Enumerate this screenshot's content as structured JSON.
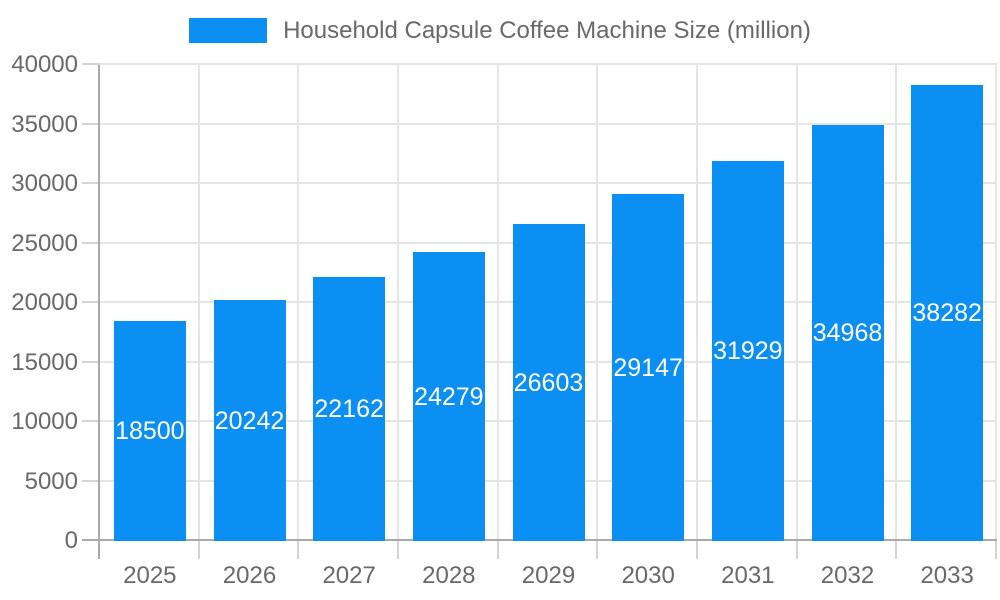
{
  "legend": {
    "label": "Household Capsule Coffee Machine Size (million)"
  },
  "colors": {
    "bar": "#0c8ff2",
    "grid_line": "#e5e5e5",
    "axis_line": "#a9a9a9",
    "tick_mark": "#d4d4d4",
    "tick_text": "#696969",
    "legend_text": "#696969",
    "bar_label_text": "#ffffff",
    "background": "#ffffff"
  },
  "chart_data": {
    "type": "bar",
    "title": "",
    "xlabel": "",
    "ylabel": "",
    "categories": [
      "2025",
      "2026",
      "2027",
      "2028",
      "2029",
      "2030",
      "2031",
      "2032",
      "2033"
    ],
    "series": [
      {
        "name": "Household Capsule Coffee Machine Size (million)",
        "values": [
          18500,
          20242,
          22162,
          24279,
          26603,
          29147,
          31929,
          34968,
          38282
        ]
      }
    ],
    "bar_labels": [
      "18500",
      "20242",
      "22162",
      "24279",
      "26603",
      "29147",
      "31929",
      "34968",
      "38282"
    ],
    "bar_labels_inside": true,
    "ylim": [
      0,
      40000
    ],
    "ytick_step": 5000,
    "yticks": [
      0,
      5000,
      10000,
      15000,
      20000,
      25000,
      30000,
      35000,
      40000
    ],
    "ytick_labels": [
      "0",
      "5000",
      "10000",
      "15000",
      "20000",
      "25000",
      "30000",
      "35000",
      "40000"
    ],
    "grid": true,
    "legend_position": "top"
  }
}
